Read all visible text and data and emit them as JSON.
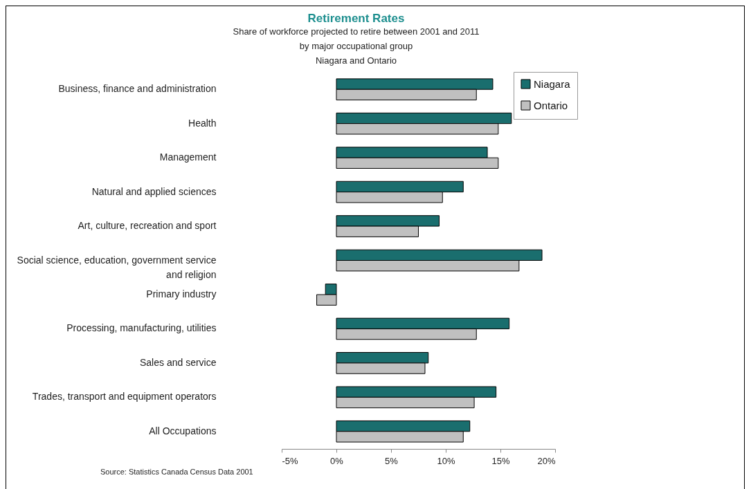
{
  "chart_data": {
    "type": "bar",
    "orientation": "horizontal",
    "title": "Retirement Rates",
    "subtitle": "Share of workforce projected to retire between 2001 and 2011\nby major occupational group\nNiagara and Ontario",
    "categories": [
      "Business, finance and administration",
      "Health",
      "Management",
      "Natural and applied sciences",
      "Art, culture, recreation and sport",
      "Social science, education, government service and religion",
      "Primary industry",
      "Processing, manufacturing, utilities",
      "Sales and service",
      "Trades, transport and equipment operators",
      "All Occupations"
    ],
    "series": [
      {
        "name": "Niagara",
        "color": "#1a6e6e",
        "values": [
          14.3,
          16.0,
          13.8,
          11.6,
          9.4,
          18.8,
          -1.0,
          15.8,
          8.4,
          14.6,
          12.2
        ]
      },
      {
        "name": "Ontario",
        "color": "#c0c0c0",
        "values": [
          12.8,
          14.8,
          14.8,
          9.7,
          7.5,
          16.7,
          -1.8,
          12.8,
          8.1,
          12.6,
          11.6
        ]
      }
    ],
    "xlim": [
      -5,
      20
    ],
    "xticks": [
      {
        "value": -5,
        "label": "-5%"
      },
      {
        "value": 0,
        "label": "0%"
      },
      {
        "value": 5,
        "label": "5%"
      },
      {
        "value": 10,
        "label": "10%"
      },
      {
        "value": 15,
        "label": "15%"
      },
      {
        "value": 20,
        "label": "20%"
      }
    ],
    "grid": false,
    "legend": "right",
    "annotations": [
      "Source: Statistics Canada Census Data 2001"
    ]
  }
}
